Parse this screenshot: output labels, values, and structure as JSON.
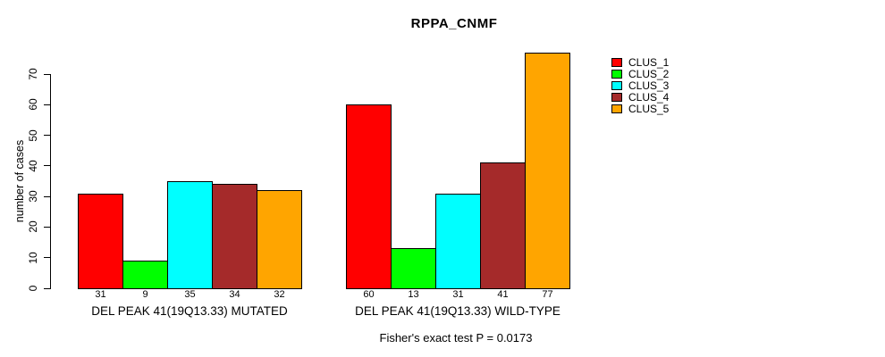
{
  "chart_data": {
    "type": "bar",
    "title": "RPPA_CNMF",
    "xlabel": "",
    "ylabel": "number of cases",
    "ylim": [
      0,
      70
    ],
    "yticks": [
      0,
      10,
      20,
      30,
      40,
      50,
      60,
      70
    ],
    "grid": false,
    "legend_position": "right",
    "categories": [
      "DEL PEAK 41(19Q13.33) MUTATED",
      "DEL PEAK 41(19Q13.33) WILD-TYPE"
    ],
    "series": [
      {
        "name": "CLUS_1",
        "color": "#FF0000",
        "values": [
          31,
          60
        ]
      },
      {
        "name": "CLUS_2",
        "color": "#00FF00",
        "values": [
          9,
          13
        ]
      },
      {
        "name": "CLUS_3",
        "color": "#00FFFF",
        "values": [
          35,
          31
        ]
      },
      {
        "name": "CLUS_4",
        "color": "#A52A2A",
        "values": [
          34,
          41
        ]
      },
      {
        "name": "CLUS_5",
        "color": "#FFA500",
        "values": [
          32,
          77
        ]
      }
    ],
    "bar_value_labels": [
      [
        31,
        9,
        35,
        34,
        32
      ],
      [
        60,
        13,
        31,
        41,
        77
      ]
    ],
    "annotation": "Fisher's exact test P = 0.0173"
  },
  "colors": {
    "background": "#FFFFFF",
    "axis": "#000000",
    "text": "#000000"
  }
}
